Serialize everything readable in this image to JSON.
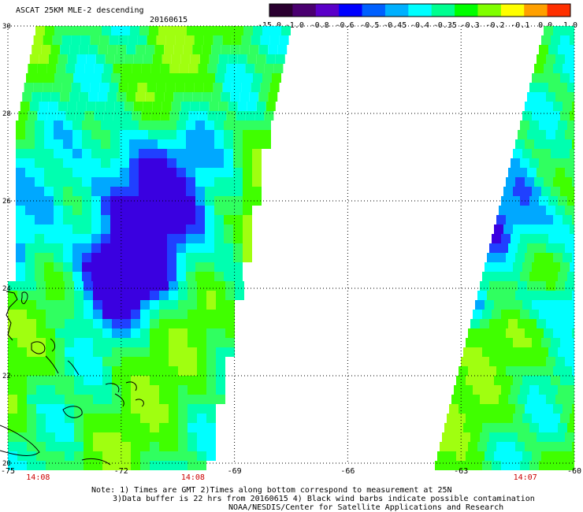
{
  "header": {
    "title": "ASCAT 25KM MLE-2 descending",
    "date": "20160615"
  },
  "colorbar": {
    "tick_labels": [
      "-15.0",
      "-1.0",
      "-0.8",
      "-0.6",
      "-0.5",
      "-0.45",
      "-0.4",
      "-0.35",
      "-0.3",
      "-0.2",
      "-0.1",
      "0.0",
      "1.0"
    ],
    "colors": [
      "#2a0030",
      "#4a0070",
      "#5a00c8",
      "#0000ff",
      "#0060ff",
      "#00b0ff",
      "#00ffff",
      "#00ff90",
      "#00ff00",
      "#80ff00",
      "#ffff00",
      "#ffa000",
      "#ff3000"
    ]
  },
  "map": {
    "lon_labels": [
      "-75",
      "-72",
      "-69",
      "-66",
      "-63",
      "-60"
    ],
    "lat_labels": [
      "30",
      "28",
      "26",
      "24",
      "22",
      "20"
    ],
    "lon_range": [
      -75,
      -60
    ],
    "lat_range": [
      20,
      30
    ],
    "time_labels": [
      {
        "text": "14:08",
        "lon": -74.2
      },
      {
        "text": "14:08",
        "lon": -70.1
      },
      {
        "text": "14:07",
        "lon": -61.3
      }
    ],
    "time_color": "#cc0000",
    "land_outline_color": "#000000"
  },
  "notes": {
    "line1": "Note: 1) Times are GMT 2)Times along bottom correspond to measurement at 25N",
    "line2": "3)Data buffer is 22 hrs from 20160615 4) Black wind barbs indicate possible contamination",
    "line3": "NOAA/NESDIS/Center for Satellite Applications and Research"
  }
}
